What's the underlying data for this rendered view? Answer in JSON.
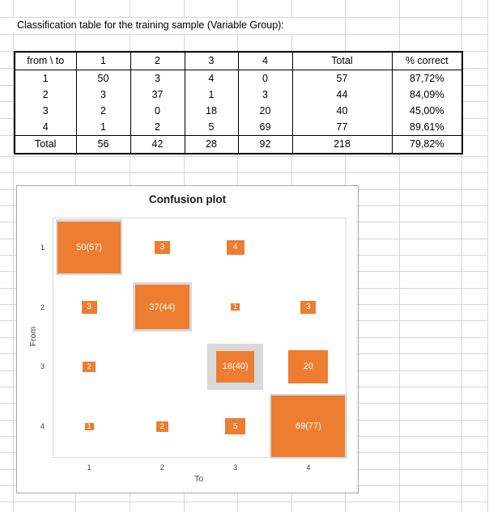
{
  "sheet": {
    "title": "Classification table for the training sample (Variable Group):"
  },
  "table": {
    "headers": [
      "from \\ to",
      "1",
      "2",
      "3",
      "4",
      "Total",
      "% correct"
    ],
    "rows": [
      [
        "1",
        "50",
        "3",
        "4",
        "0",
        "57",
        "87,72%"
      ],
      [
        "2",
        "3",
        "37",
        "1",
        "3",
        "44",
        "84,09%"
      ],
      [
        "3",
        "2",
        "0",
        "18",
        "20",
        "40",
        "45,00%"
      ],
      [
        "4",
        "1",
        "2",
        "5",
        "69",
        "77",
        "89,61%"
      ],
      [
        "Total",
        "56",
        "42",
        "28",
        "92",
        "218",
        "79,82%"
      ]
    ]
  },
  "chart_data": {
    "type": "heatmap",
    "title": "Confusion plot",
    "xlabel": "To",
    "ylabel": "From",
    "x_ticks": [
      "1",
      "2",
      "3",
      "4"
    ],
    "y_ticks": [
      "1",
      "2",
      "3",
      "4"
    ],
    "legend": "none",
    "marker_color": "#ED7D31",
    "total_marker_color": "#D9D9D9",
    "label_color": "#FFFFFF",
    "max_total": 77,
    "cells": [
      {
        "from": 1,
        "to": 1,
        "value": 50,
        "total": 57,
        "label": "50(57)"
      },
      {
        "from": 1,
        "to": 2,
        "value": 3,
        "label": "3"
      },
      {
        "from": 1,
        "to": 3,
        "value": 4,
        "label": "4"
      },
      {
        "from": 2,
        "to": 1,
        "value": 3,
        "label": "3"
      },
      {
        "from": 2,
        "to": 2,
        "value": 37,
        "total": 44,
        "label": "37(44)"
      },
      {
        "from": 2,
        "to": 3,
        "value": 1,
        "label": "1"
      },
      {
        "from": 2,
        "to": 4,
        "value": 3,
        "label": "3"
      },
      {
        "from": 3,
        "to": 1,
        "value": 2,
        "label": "2"
      },
      {
        "from": 3,
        "to": 3,
        "value": 18,
        "total": 40,
        "label": "18(40)"
      },
      {
        "from": 3,
        "to": 4,
        "value": 20,
        "label": "20"
      },
      {
        "from": 4,
        "to": 1,
        "value": 1,
        "label": "1"
      },
      {
        "from": 4,
        "to": 2,
        "value": 2,
        "label": "2"
      },
      {
        "from": 4,
        "to": 3,
        "value": 5,
        "label": "5"
      },
      {
        "from": 4,
        "to": 4,
        "value": 69,
        "total": 77,
        "label": "69(77)"
      }
    ]
  }
}
